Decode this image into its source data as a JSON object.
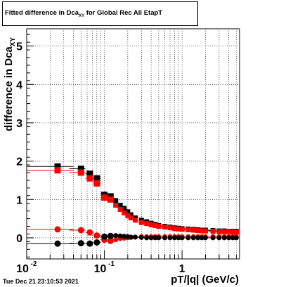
{
  "chart_data": {
    "type": "scatter",
    "title_main": "Fitted difference in Dca",
    "title_sub": "XY",
    "title_tail": " for Global Rec All EtapT",
    "ylabel_main": "difference in Dca",
    "ylabel_sub": "XY",
    "xlabel": "pT/|q| (GeV/c)",
    "xscale": "log",
    "xlim": [
      0.01,
      5.5
    ],
    "ylim": [
      -0.55,
      5.45
    ],
    "grid": true,
    "x_tick_labels": [
      "10",
      "-2",
      "10",
      "-1",
      "1"
    ],
    "y_tick_labels": [
      "0",
      "1",
      "2",
      "3",
      "4",
      "5"
    ],
    "series": [
      {
        "marker": "square",
        "color": "#000000",
        "x": [
          0.025,
          0.05,
          0.065,
          0.08,
          0.1,
          0.12,
          0.14,
          0.16,
          0.18,
          0.2,
          0.22,
          0.25,
          0.3,
          0.35,
          0.4,
          0.45,
          0.5,
          0.6,
          0.7,
          0.8,
          0.9,
          1.0,
          1.2,
          1.4,
          1.6,
          1.8,
          2.0,
          2.5,
          3.0,
          3.5,
          4.0,
          4.5,
          5.0
        ],
        "y": [
          1.86,
          1.8,
          1.67,
          1.55,
          1.12,
          1.08,
          0.97,
          0.85,
          0.77,
          0.68,
          0.6,
          0.52,
          0.46,
          0.42,
          0.38,
          0.35,
          0.32,
          0.3,
          0.28,
          0.26,
          0.25,
          0.24,
          0.23,
          0.22,
          0.21,
          0.2,
          0.2,
          0.19,
          0.18,
          0.18,
          0.17,
          0.17,
          0.17
        ]
      },
      {
        "marker": "square",
        "color": "#ff0000",
        "x": [
          0.025,
          0.05,
          0.065,
          0.08,
          0.1,
          0.12,
          0.14,
          0.16,
          0.18,
          0.2,
          0.22,
          0.25,
          0.3,
          0.35,
          0.4,
          0.45,
          0.5,
          0.6,
          0.7,
          0.8,
          0.9,
          1.0,
          1.2,
          1.4,
          1.6,
          1.8,
          2.0,
          2.5,
          3.0,
          3.5,
          4.0,
          4.5,
          5.0
        ],
        "y": [
          1.76,
          1.7,
          1.55,
          1.42,
          1.05,
          1.0,
          0.85,
          0.74,
          0.65,
          0.58,
          0.52,
          0.46,
          0.4,
          0.37,
          0.34,
          0.32,
          0.3,
          0.28,
          0.26,
          0.24,
          0.23,
          0.22,
          0.21,
          0.2,
          0.19,
          0.18,
          0.18,
          0.17,
          0.16,
          0.16,
          0.16,
          0.15,
          0.15
        ]
      },
      {
        "marker": "circle",
        "color": "#ff0000",
        "x": [
          0.025,
          0.05,
          0.065,
          0.08,
          0.1,
          0.12,
          0.14,
          0.16,
          0.18,
          0.2,
          0.22,
          0.25,
          0.3,
          0.35,
          0.4,
          0.45,
          0.5,
          0.6,
          0.7,
          0.8,
          0.9,
          1.0,
          1.2,
          1.4,
          1.6,
          1.8,
          2.0,
          2.5,
          3.0,
          3.5,
          4.0,
          4.5,
          5.0
        ],
        "y": [
          0.22,
          0.2,
          0.14,
          0.06,
          -0.05,
          -0.08,
          -0.05,
          -0.02,
          -0.01,
          0.0,
          0.01,
          0.02,
          0.03,
          0.03,
          0.03,
          0.03,
          0.03,
          0.03,
          0.03,
          0.03,
          0.03,
          0.03,
          0.03,
          0.03,
          0.03,
          0.03,
          0.03,
          0.03,
          0.03,
          0.03,
          0.03,
          0.03,
          0.03
        ]
      },
      {
        "marker": "circle",
        "color": "#000000",
        "x": [
          0.025,
          0.05,
          0.065,
          0.08,
          0.1,
          0.12,
          0.14,
          0.16,
          0.18,
          0.2,
          0.22,
          0.25,
          0.3,
          0.35,
          0.4,
          0.45,
          0.5,
          0.6,
          0.7,
          0.8,
          0.9,
          1.0,
          1.2,
          1.4,
          1.6,
          1.8,
          2.0,
          2.5,
          3.0,
          3.5,
          4.0,
          4.5,
          5.0
        ],
        "y": [
          -0.15,
          -0.14,
          -0.15,
          -0.12,
          0.03,
          0.05,
          0.06,
          0.05,
          0.04,
          0.03,
          0.02,
          0.02,
          0.01,
          0.0,
          0.0,
          0.0,
          0.0,
          0.0,
          0.0,
          0.0,
          0.0,
          0.0,
          0.0,
          0.0,
          0.0,
          0.0,
          0.0,
          0.0,
          0.0,
          0.0,
          0.0,
          0.0,
          0.0
        ]
      }
    ]
  },
  "timestamp": "Tue Dec 21 23:10:53 2021"
}
